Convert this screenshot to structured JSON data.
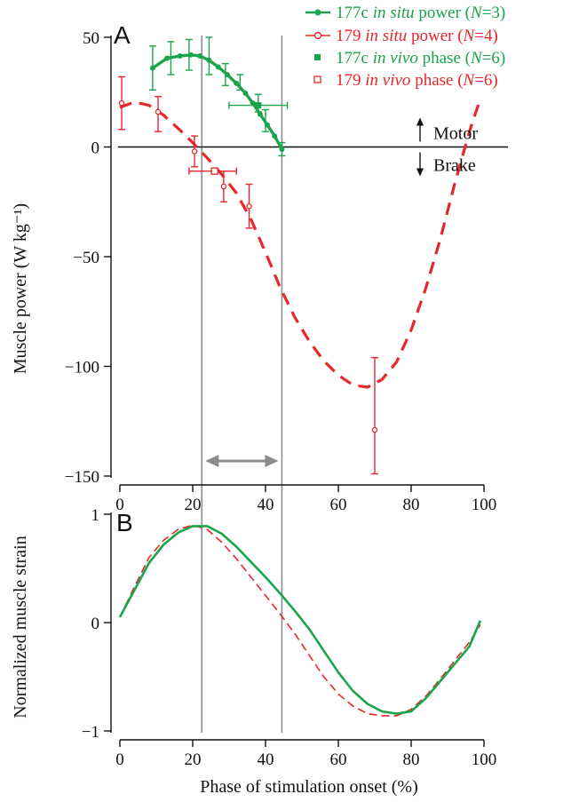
{
  "chart_data": [
    {
      "type": "line",
      "panel": "A",
      "ylabel": "Muscle power (W kg⁻¹)",
      "ylim": [
        -150,
        50
      ],
      "xlim": [
        0,
        100
      ],
      "yticks": [
        50,
        0,
        -50,
        -100,
        -150
      ],
      "ytick_labels": [
        "50",
        "0",
        "−50",
        "−100",
        "−150"
      ],
      "xticks": [
        0,
        20,
        40,
        60,
        80,
        100
      ],
      "xtick_labels": [
        "0",
        "20",
        "40",
        "60",
        "80",
        "100"
      ],
      "grid": false,
      "legend_position": "top-right",
      "colors": {
        "green": "#1aa54a",
        "red": "#e8262b",
        "gray": "#8c8c8c"
      },
      "series": [
        {
          "name": "177c in situ power",
          "legend": {
            "prefix": "177c ",
            "italic": "in situ",
            "mid": " power (",
            "n_italic": "N",
            "suffix": "=3)"
          },
          "color": "#1aa54a",
          "style": "solid-filled-circle",
          "x": [
            9,
            13,
            16.5,
            19.5,
            22,
            24.5,
            27,
            29.5,
            32,
            34.5,
            36.5,
            38.5,
            40.5,
            42.5,
            44.5
          ],
          "y": [
            36,
            40.5,
            41.5,
            42,
            41.5,
            39.5,
            36.5,
            33,
            29,
            24.5,
            20,
            15,
            10,
            5,
            -1
          ],
          "error_points": [
            {
              "x": 9,
              "y": 36,
              "low": 26,
              "high": 46
            },
            {
              "x": 14,
              "y": 40.5,
              "low": 33,
              "high": 48
            },
            {
              "x": 19,
              "y": 42,
              "low": 35,
              "high": 49
            },
            {
              "x": 24.5,
              "y": 41.5,
              "low": 33,
              "high": 50
            },
            {
              "x": 29,
              "y": 34,
              "low": 28,
              "high": 38
            },
            {
              "x": 33,
              "y": 29,
              "low": 26,
              "high": 33
            },
            {
              "x": 38,
              "y": 20,
              "low": 16,
              "high": 24
            },
            {
              "x": 40,
              "y": 12,
              "low": 7,
              "high": 17
            },
            {
              "x": 44.5,
              "y": -1,
              "low": -4,
              "high": 2
            }
          ]
        },
        {
          "name": "179 in situ power",
          "legend": {
            "prefix": "179 ",
            "italic": "in situ",
            "mid": " power (",
            "n_italic": "N",
            "suffix": "=4)"
          },
          "color": "#e8262b",
          "style": "dashed-open-circle",
          "curve_x": [
            0,
            4,
            8,
            12,
            16,
            20,
            24,
            28,
            32,
            36,
            40,
            44,
            48,
            52,
            56,
            60,
            64,
            68,
            72,
            76,
            80,
            84,
            88,
            92,
            96,
            99
          ],
          "curve_y": [
            18,
            20.5,
            19,
            14.5,
            8.5,
            2,
            -5,
            -12.5,
            -21,
            -33,
            -48,
            -64,
            -77.5,
            -88.5,
            -97.5,
            -104,
            -108.5,
            -109.5,
            -106,
            -98,
            -83.5,
            -64.5,
            -42,
            -16.5,
            7,
            22
          ],
          "points": [
            {
              "x": 0.5,
              "y": 20,
              "low": 8,
              "high": 32
            },
            {
              "x": 10.5,
              "y": 16,
              "low": 7,
              "high": 23
            },
            {
              "x": 20.5,
              "y": -2,
              "low": -9,
              "high": 5
            },
            {
              "x": 28.5,
              "y": -18,
              "low": -25,
              "high": -11
            },
            {
              "x": 35.5,
              "y": -27,
              "low": -37,
              "high": -17
            },
            {
              "x": 70,
              "y": -129,
              "low": -149,
              "high": -96
            }
          ]
        },
        {
          "name": "177c in vivo phase",
          "legend": {
            "prefix": "177c ",
            "italic": "in vivo",
            "mid": " phase (",
            "n_italic": "N",
            "suffix": "=6)"
          },
          "color": "#1aa54a",
          "style": "filled-square",
          "x": [
            38
          ],
          "y": [
            19
          ],
          "xerr": [
            [
              30,
              46
            ]
          ]
        },
        {
          "name": "179 in vivo phase",
          "legend": {
            "prefix": "179 ",
            "italic": "in vivo",
            "mid": " phase (",
            "n_italic": "N",
            "suffix": "=6)"
          },
          "color": "#e8262b",
          "style": "open-square",
          "x": [
            26
          ],
          "y": [
            -11
          ],
          "xerr": [
            [
              19,
              32
            ]
          ]
        }
      ],
      "annotations": {
        "motor": "Motor",
        "brake": "Brake",
        "phase_range_arrow": [
          23,
          44
        ]
      },
      "vertical_lines": [
        22.5,
        44.5
      ]
    },
    {
      "type": "line",
      "panel": "B",
      "xlabel": "Phase of stimulation onset (%)",
      "ylabel": "Normalized muscle strain",
      "ylim": [
        -1,
        1
      ],
      "xlim": [
        0,
        100
      ],
      "yticks": [
        1,
        0,
        -1
      ],
      "ytick_labels": [
        "1",
        "0",
        "−1"
      ],
      "xticks": [
        0,
        20,
        40,
        60,
        80,
        100
      ],
      "xtick_labels": [
        "0",
        "20",
        "40",
        "60",
        "80",
        "100"
      ],
      "grid": false,
      "series": [
        {
          "color": "#1aa54a",
          "style": "solid",
          "x": [
            0,
            4,
            8,
            12,
            16,
            20,
            24,
            28,
            32,
            36,
            40,
            44,
            48,
            52,
            56,
            60,
            64,
            68,
            72,
            76,
            80,
            84,
            88,
            92,
            96,
            99
          ],
          "y": [
            0.05,
            0.3,
            0.55,
            0.72,
            0.83,
            0.89,
            0.89,
            0.82,
            0.7,
            0.56,
            0.42,
            0.27,
            0.11,
            -0.06,
            -0.26,
            -0.46,
            -0.63,
            -0.75,
            -0.82,
            -0.84,
            -0.82,
            -0.7,
            -0.54,
            -0.38,
            -0.22,
            0.02
          ]
        },
        {
          "color": "#e8262b",
          "style": "dashed",
          "x": [
            0,
            4,
            8,
            12,
            16,
            20,
            24,
            28,
            32,
            36,
            40,
            44,
            48,
            52,
            56,
            60,
            64,
            68,
            72,
            76,
            80,
            84,
            88,
            92,
            96,
            99
          ],
          "y": [
            0.05,
            0.33,
            0.6,
            0.76,
            0.86,
            0.9,
            0.86,
            0.74,
            0.59,
            0.42,
            0.25,
            0.08,
            -0.1,
            -0.3,
            -0.5,
            -0.66,
            -0.77,
            -0.84,
            -0.86,
            -0.86,
            -0.8,
            -0.68,
            -0.52,
            -0.35,
            -0.18,
            -0.02
          ]
        }
      ],
      "vertical_lines": [
        22.5,
        44.5
      ]
    }
  ]
}
